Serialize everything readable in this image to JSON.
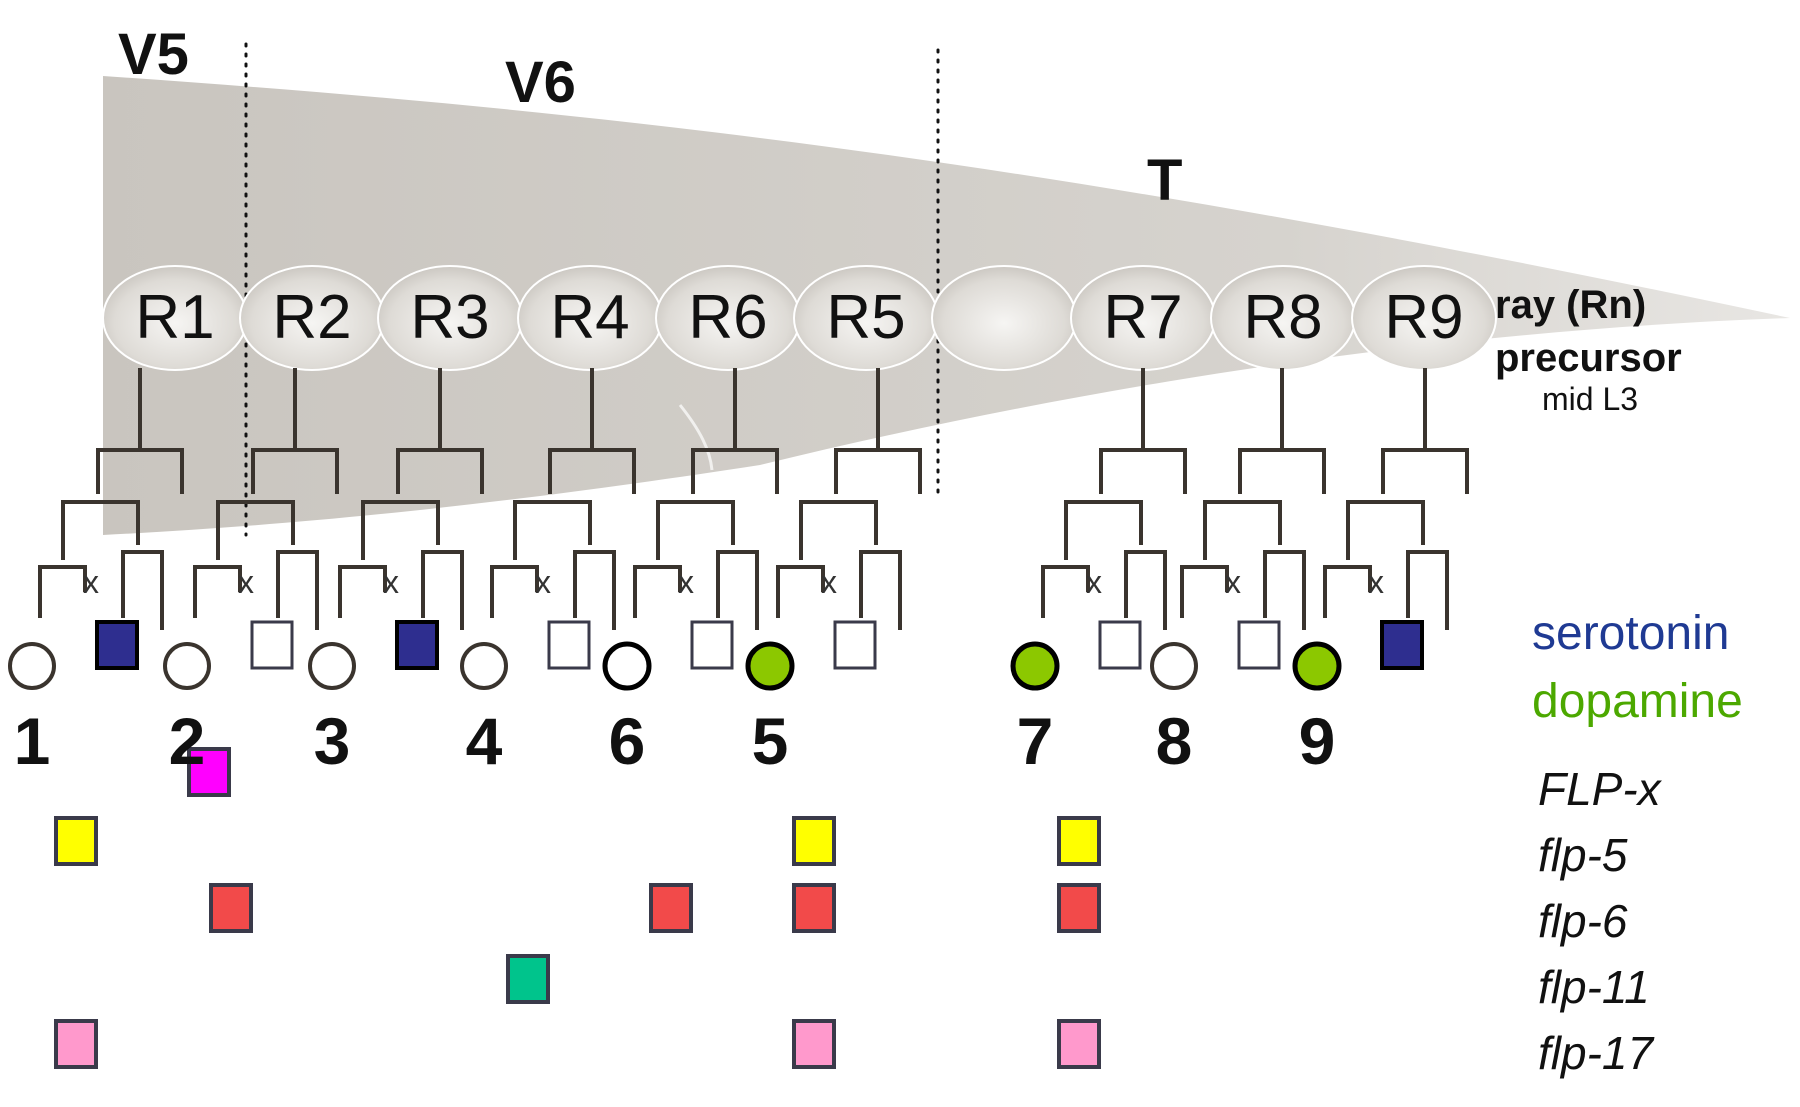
{
  "regions": [
    "V5",
    "V6",
    "T"
  ],
  "precursor_label": {
    "line1": "ray (Rn)",
    "line2": "precursor",
    "line3": "mid L3"
  },
  "rays": [
    "R1",
    "R2",
    "R3",
    "R4",
    "R6",
    "R5",
    "",
    "R7",
    "R8",
    "R9"
  ],
  "division_mark": "x",
  "neurons": [
    {
      "number": "1",
      "a_cell": "open",
      "b_cell": "serotonin"
    },
    {
      "number": "2",
      "a_cell": "open",
      "b_cell": "open"
    },
    {
      "number": "3",
      "a_cell": "open",
      "b_cell": "serotonin"
    },
    {
      "number": "4",
      "a_cell": "open",
      "b_cell": "open"
    },
    {
      "number": "6",
      "a_cell": "open-bold",
      "b_cell": "open"
    },
    {
      "number": "5",
      "a_cell": "dopamine",
      "b_cell": "open"
    },
    {
      "number": "7",
      "a_cell": "dopamine",
      "b_cell": "open"
    },
    {
      "number": "8",
      "a_cell": "open",
      "b_cell": "open"
    },
    {
      "number": "9",
      "a_cell": "dopamine",
      "b_cell": "serotonin"
    }
  ],
  "legend": {
    "neurotransmitters": [
      {
        "name": "serotonin",
        "color": "#1f3a93"
      },
      {
        "name": "dopamine",
        "color": "#4ca800"
      }
    ],
    "genes": [
      {
        "name": "FLP-x",
        "color": "#ff00ff",
        "expressed_in": [
          "2"
        ]
      },
      {
        "name": "flp-5",
        "color": "#ffff00",
        "expressed_in": [
          "1",
          "5",
          "7"
        ]
      },
      {
        "name": "flp-6",
        "color": "#f24a4a",
        "expressed_in": [
          "2",
          "6",
          "5",
          "7"
        ]
      },
      {
        "name": "flp-11",
        "color": "#00c48c",
        "expressed_in": [
          "4"
        ]
      },
      {
        "name": "flp-17",
        "color": "#ff99cc",
        "expressed_in": [
          "1",
          "5",
          "7"
        ]
      }
    ]
  },
  "colors": {
    "serotonin_fill": "#2e2e8f",
    "dopamine_fill": "#8cc800",
    "tail": "#d2cec8",
    "line": "#3a342e"
  }
}
